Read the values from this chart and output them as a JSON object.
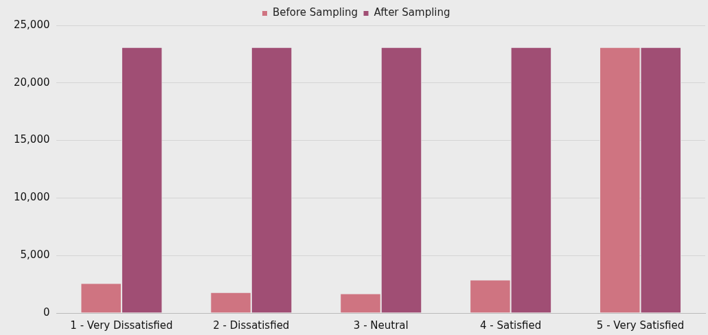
{
  "chart_data": {
    "type": "bar",
    "categories": [
      "1 - Very Dissatisfied",
      "2 - Dissatisfied",
      "3 - Neutral",
      "4 - Satisfied",
      "5 - Very Satisfied"
    ],
    "series": [
      {
        "name": "Before Sampling",
        "color": "#cf7481",
        "values": [
          2600,
          1800,
          1700,
          2900,
          23100
        ]
      },
      {
        "name": "After Sampling",
        "color": "#a04e74",
        "values": [
          23100,
          23100,
          23100,
          23100,
          23100
        ]
      }
    ],
    "ylim": [
      0,
      25000
    ],
    "yticks": [
      {
        "value": 0,
        "label": "0"
      },
      {
        "value": 5000,
        "label": "5,000"
      },
      {
        "value": 10000,
        "label": "10,000"
      },
      {
        "value": 15000,
        "label": "15,000"
      },
      {
        "value": 20000,
        "label": "20,000"
      },
      {
        "value": 25000,
        "label": "25,000"
      }
    ],
    "grid": "y",
    "legend": "top"
  }
}
